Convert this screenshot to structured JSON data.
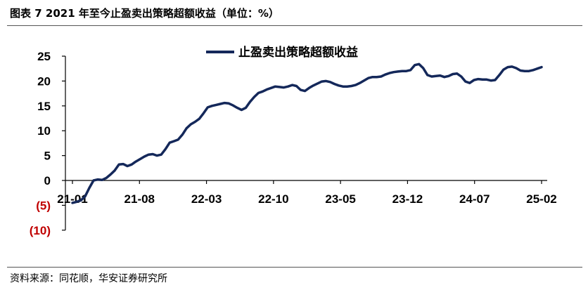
{
  "figure": {
    "title": "图表 7  2021 年至今止盈卖出策略超额收益（单位：%）",
    "source": "资料来源：同花顺，华安证券研究所"
  },
  "chart_data": {
    "type": "line",
    "y_range": [
      -10,
      25
    ],
    "y_ticks": [
      {
        "value": 25,
        "label": "25"
      },
      {
        "value": 20,
        "label": "20"
      },
      {
        "value": 15,
        "label": "15"
      },
      {
        "value": 10,
        "label": "10"
      },
      {
        "value": 5,
        "label": "5"
      },
      {
        "value": 0,
        "label": "0"
      },
      {
        "value": -5,
        "label": "(5)"
      },
      {
        "value": -10,
        "label": "(10)"
      }
    ],
    "x_ticks": [
      "21-01",
      "21-08",
      "22-03",
      "22-10",
      "23-05",
      "23-12",
      "24-07",
      "25-02"
    ],
    "legend_position": "top-center",
    "series": [
      {
        "name": "止盈卖出策略超额收益",
        "color": "#14285a",
        "points": [
          [
            0,
            -4.5
          ],
          [
            0.3,
            -4.3
          ],
          [
            0.6,
            -4.0
          ],
          [
            0.9,
            -3.2
          ],
          [
            1.2,
            -1.5
          ],
          [
            1.5,
            0.0
          ],
          [
            1.8,
            0.2
          ],
          [
            2.1,
            0.1
          ],
          [
            2.4,
            0.5
          ],
          [
            2.7,
            1.2
          ],
          [
            3.0,
            2.0
          ],
          [
            3.3,
            3.2
          ],
          [
            3.6,
            3.3
          ],
          [
            3.9,
            2.9
          ],
          [
            4.2,
            3.2
          ],
          [
            4.5,
            3.8
          ],
          [
            4.8,
            4.3
          ],
          [
            5.1,
            4.8
          ],
          [
            5.4,
            5.2
          ],
          [
            5.7,
            5.3
          ],
          [
            6.0,
            5.0
          ],
          [
            6.3,
            5.2
          ],
          [
            6.6,
            6.3
          ],
          [
            6.9,
            7.6
          ],
          [
            7.2,
            7.9
          ],
          [
            7.5,
            8.2
          ],
          [
            7.8,
            9.2
          ],
          [
            8.1,
            10.5
          ],
          [
            8.4,
            11.3
          ],
          [
            8.7,
            11.8
          ],
          [
            9.0,
            12.4
          ],
          [
            9.3,
            13.5
          ],
          [
            9.6,
            14.7
          ],
          [
            9.9,
            15.0
          ],
          [
            10.2,
            15.2
          ],
          [
            10.5,
            15.4
          ],
          [
            10.8,
            15.6
          ],
          [
            11.1,
            15.5
          ],
          [
            11.4,
            15.1
          ],
          [
            11.7,
            14.6
          ],
          [
            12.0,
            14.2
          ],
          [
            12.3,
            14.6
          ],
          [
            12.6,
            15.8
          ],
          [
            12.9,
            16.8
          ],
          [
            13.2,
            17.6
          ],
          [
            13.5,
            17.9
          ],
          [
            13.8,
            18.3
          ],
          [
            14.1,
            18.6
          ],
          [
            14.4,
            18.9
          ],
          [
            14.7,
            18.8
          ],
          [
            15.0,
            18.7
          ],
          [
            15.3,
            18.9
          ],
          [
            15.6,
            19.2
          ],
          [
            15.9,
            19.0
          ],
          [
            16.2,
            18.2
          ],
          [
            16.5,
            18.0
          ],
          [
            16.8,
            18.6
          ],
          [
            17.1,
            19.1
          ],
          [
            17.4,
            19.5
          ],
          [
            17.7,
            19.9
          ],
          [
            18.0,
            20.0
          ],
          [
            18.3,
            19.8
          ],
          [
            18.6,
            19.4
          ],
          [
            18.9,
            19.1
          ],
          [
            19.2,
            18.9
          ],
          [
            19.5,
            18.9
          ],
          [
            19.8,
            19.0
          ],
          [
            20.1,
            19.2
          ],
          [
            20.4,
            19.6
          ],
          [
            20.7,
            20.1
          ],
          [
            21.0,
            20.6
          ],
          [
            21.3,
            20.8
          ],
          [
            21.6,
            20.8
          ],
          [
            21.9,
            20.9
          ],
          [
            22.2,
            21.3
          ],
          [
            22.5,
            21.6
          ],
          [
            22.8,
            21.8
          ],
          [
            23.1,
            21.9
          ],
          [
            23.4,
            22.0
          ],
          [
            23.7,
            22.0
          ],
          [
            24.0,
            22.2
          ],
          [
            24.3,
            23.2
          ],
          [
            24.6,
            23.4
          ],
          [
            24.9,
            22.6
          ],
          [
            25.2,
            21.2
          ],
          [
            25.5,
            20.9
          ],
          [
            25.8,
            21.0
          ],
          [
            26.1,
            21.1
          ],
          [
            26.4,
            20.8
          ],
          [
            26.7,
            21.0
          ],
          [
            27.0,
            21.4
          ],
          [
            27.3,
            21.5
          ],
          [
            27.6,
            20.9
          ],
          [
            27.9,
            19.9
          ],
          [
            28.2,
            19.6
          ],
          [
            28.5,
            20.2
          ],
          [
            28.8,
            20.4
          ],
          [
            29.1,
            20.3
          ],
          [
            29.4,
            20.3
          ],
          [
            29.7,
            20.1
          ],
          [
            30.0,
            20.2
          ],
          [
            30.3,
            21.2
          ],
          [
            30.6,
            22.3
          ],
          [
            30.9,
            22.8
          ],
          [
            31.2,
            22.9
          ],
          [
            31.5,
            22.6
          ],
          [
            31.8,
            22.1
          ],
          [
            32.1,
            22.0
          ],
          [
            32.4,
            22.0
          ],
          [
            32.7,
            22.2
          ],
          [
            33.0,
            22.5
          ],
          [
            33.3,
            22.8
          ]
        ]
      }
    ]
  }
}
